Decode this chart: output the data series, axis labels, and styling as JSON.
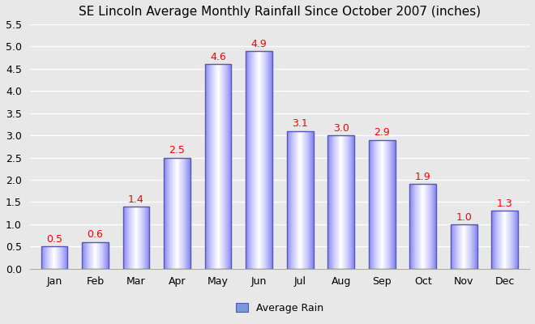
{
  "title": "SE Lincoln Average Monthly Rainfall Since October 2007 (inches)",
  "months": [
    "Jan",
    "Feb",
    "Mar",
    "Apr",
    "May",
    "Jun",
    "Jul",
    "Aug",
    "Sep",
    "Oct",
    "Nov",
    "Dec"
  ],
  "values": [
    0.5,
    0.6,
    1.4,
    2.5,
    4.6,
    4.9,
    3.1,
    3.0,
    2.9,
    1.9,
    1.0,
    1.3
  ],
  "ylim": [
    0,
    5.5
  ],
  "yticks": [
    0.0,
    0.5,
    1.0,
    1.5,
    2.0,
    2.5,
    3.0,
    3.5,
    4.0,
    4.5,
    5.0,
    5.5
  ],
  "bar_gradient_colors": [
    "#8888ee",
    "#ccccff",
    "#ffffff",
    "#ccccff",
    "#8888ee"
  ],
  "bar_edge_color": "#5555bb",
  "label_color": "#ff0000",
  "legend_label": "Average Rain",
  "legend_color": "#7799dd",
  "background_color": "#e8e8e8",
  "plot_bg_color": "#e8e8e8",
  "grid_color": "#ffffff",
  "title_fontsize": 11,
  "label_fontsize": 9,
  "tick_fontsize": 9,
  "bar_width": 0.65
}
